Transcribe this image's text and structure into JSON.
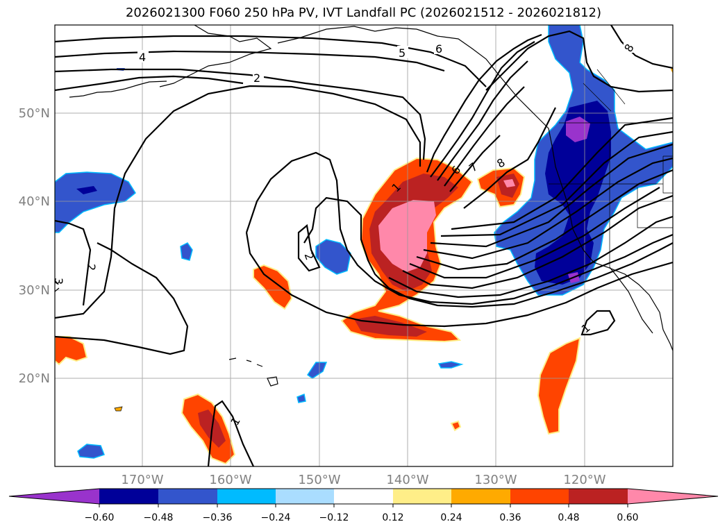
{
  "title": "2026021300 F060 250 hPa PV, IVT Landfall PC (2026021512 - 2026021812)",
  "axes": {
    "lat_labels": [
      "50°N",
      "40°N",
      "30°N",
      "20°N"
    ],
    "lon_labels": [
      "170°W",
      "160°W",
      "150°W",
      "140°W",
      "130°W",
      "120°W"
    ]
  },
  "contour_labels": [
    "4",
    "5",
    "6",
    "2",
    "8",
    "6",
    "7",
    "8",
    "1",
    "2",
    "3",
    "2",
    "1",
    "1"
  ],
  "colorbar": {
    "colors": [
      "#9933cc",
      "#000099",
      "#3355cc",
      "#00bbff",
      "#aaddff",
      "#ffffff",
      "#ffee88",
      "#ffaa00",
      "#ff4400",
      "#bb2222",
      "#ff88aa"
    ],
    "tick_labels": [
      "−0.60",
      "−0.48",
      "−0.36",
      "−0.24",
      "−0.12",
      "0.12",
      "0.24",
      "0.36",
      "0.48",
      "0.60"
    ]
  }
}
